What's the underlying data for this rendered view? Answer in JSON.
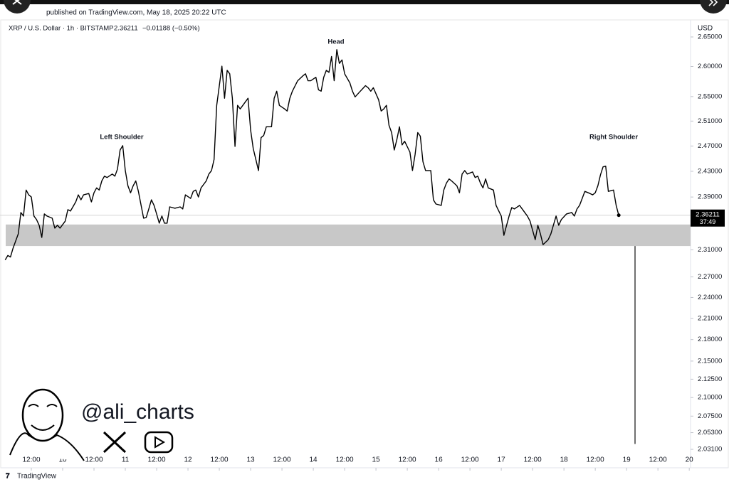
{
  "header": {
    "published": "published on TradingView.com, May 18, 2025 20:22 UTC",
    "symbol": "XRP / U.S. Dollar · 1h · BITSTAMP",
    "change": "−0.01188 (−0.50%)",
    "currency": "USD",
    "countdown": "37:49",
    "author": "@ali_charts",
    "brand": "TradingView"
  },
  "chart_data": {
    "type": "line",
    "color": "#000000",
    "log_scale": true,
    "grid": false,
    "annotations": [
      "Left Shoulder",
      "Head",
      "Right Shoulder"
    ],
    "support_zone": [
      2.3156,
      2.348
    ],
    "target": 2.038,
    "x": [
      -22,
      -21,
      -20,
      -19,
      -17,
      -16,
      -15,
      -14,
      -13,
      -12,
      -11,
      -10,
      -9,
      -8,
      -7,
      -6,
      -4,
      -3,
      -2,
      -1,
      1,
      2,
      3,
      5,
      6,
      7,
      8,
      10,
      11,
      12,
      13,
      14,
      15,
      16,
      17,
      19,
      20,
      21,
      22,
      23,
      24,
      25,
      26,
      27,
      28,
      29,
      31,
      32,
      33,
      34,
      35,
      36,
      37,
      38,
      39,
      40,
      41,
      43,
      45,
      46,
      47,
      49,
      50,
      51,
      52,
      53,
      55,
      56,
      57,
      58,
      59,
      61,
      62,
      63,
      64,
      65,
      66,
      67,
      68,
      69,
      71,
      72,
      73,
      75,
      76,
      77,
      78,
      80,
      81,
      82,
      83,
      85,
      86,
      87,
      88,
      90,
      92,
      93,
      94,
      95,
      97,
      98,
      99,
      100,
      101,
      102,
      103,
      104,
      105,
      106,
      107,
      108,
      110,
      111,
      112,
      114,
      116,
      117,
      118,
      119,
      121,
      122,
      123,
      124,
      125,
      126,
      127,
      128,
      129,
      130,
      131,
      133,
      134,
      135,
      136,
      137,
      138,
      139,
      141,
      142,
      143,
      145,
      146,
      147,
      148,
      149,
      151,
      152,
      153,
      154,
      155,
      157,
      158,
      159,
      160,
      161,
      162,
      163,
      165,
      166,
      168,
      169,
      171,
      172,
      173,
      175,
      176,
      178,
      179,
      181,
      182,
      183,
      184,
      186,
      187,
      189,
      190,
      191,
      193,
      195,
      196,
      197,
      198,
      199,
      200,
      202,
      203,
      204,
      205,
      206,
      207,
      208,
      209,
      211,
      212,
      213
    ],
    "values": [
      2.295,
      2.3015,
      2.2993,
      2.3123,
      2.3339,
      2.3663,
      2.3609,
      2.4008,
      2.3933,
      2.39,
      2.3609,
      2.3555,
      2.3468,
      2.3285,
      2.3641,
      2.3609,
      2.3576,
      2.3425,
      2.3468,
      2.3425,
      2.3533,
      2.3706,
      2.3684,
      2.3825,
      2.3933,
      2.3857,
      2.3933,
      2.3954,
      2.3825,
      2.3965,
      2.4041,
      2.4008,
      2.4149,
      2.4224,
      2.4203,
      2.4257,
      2.4224,
      2.4335,
      2.4636,
      2.4706,
      2.4312,
      2.4073,
      2.3965,
      2.4073,
      2.4149,
      2.3987,
      2.3576,
      2.3587,
      2.3717,
      2.3857,
      2.3771,
      2.3641,
      2.3501,
      2.3609,
      2.3501,
      2.3501,
      2.3749,
      2.3728,
      2.3749,
      2.3717,
      2.3933,
      2.3879,
      2.3987,
      2.4008,
      2.39,
      2.4041,
      2.4149,
      2.4257,
      2.4312,
      2.4486,
      2.5356,
      2.6005,
      2.5472,
      2.5936,
      2.5878,
      2.5472,
      2.4694,
      2.5356,
      2.5298,
      2.5356,
      2.5472,
      2.495,
      2.466,
      2.4312,
      2.4834,
      2.4868,
      2.5008,
      2.5008,
      2.5472,
      2.5588,
      2.5356,
      2.5298,
      2.5263,
      2.5472,
      2.5588,
      2.5762,
      2.5843,
      2.5878,
      2.5762,
      2.5762,
      2.582,
      2.5611,
      2.5588,
      2.582,
      2.5936,
      2.5901,
      2.6168,
      2.5762,
      2.6284,
      2.6052,
      2.611,
      2.5878,
      2.5727,
      2.5588,
      2.5495,
      2.5588,
      2.568,
      2.5646,
      2.5588,
      2.5646,
      2.5448,
      2.5263,
      2.5298,
      2.5356,
      2.5031,
      2.4915,
      2.4636,
      2.4799,
      2.5008,
      2.4718,
      2.4776,
      2.4602,
      2.4312,
      2.4567,
      2.4915,
      2.4857,
      2.4451,
      2.4312,
      2.4312,
      2.3857,
      2.3792,
      2.3771,
      2.4008,
      2.4116,
      2.4181,
      2.4149,
      2.4073,
      2.3965,
      2.4257,
      2.4312,
      2.4257,
      2.4289,
      2.4203,
      2.4224,
      2.4116,
      2.4041,
      2.4181,
      2.4041,
      2.4008,
      2.3771,
      2.3609,
      2.3317,
      2.3609,
      2.3738,
      2.3717,
      2.3771,
      2.3717,
      2.3609,
      2.3533,
      2.3252,
      2.3468,
      2.3339,
      2.3177,
      2.3252,
      2.3339,
      2.3609,
      2.3468,
      2.3555,
      2.3641,
      2.3663,
      2.3609,
      2.3717,
      2.3771,
      2.3879,
      2.3987,
      2.3954,
      2.3933,
      2.3965,
      2.4073,
      2.4246,
      2.437,
      2.4381,
      2.3987,
      2.4008,
      2.3771,
      2.36211
    ],
    "xlim": [
      -24,
      240.5
    ],
    "xticks": [
      {
        "value": -12,
        "label": "12:00"
      },
      {
        "value": 0,
        "label": "10"
      },
      {
        "value": 12,
        "label": "12:00"
      },
      {
        "value": 24,
        "label": "11"
      },
      {
        "value": 36,
        "label": "12:00"
      },
      {
        "value": 48,
        "label": "12"
      },
      {
        "value": 60,
        "label": "12:00"
      },
      {
        "value": 72,
        "label": "13"
      },
      {
        "value": 84,
        "label": "12:00"
      },
      {
        "value": 96,
        "label": "14"
      },
      {
        "value": 108,
        "label": "12:00"
      },
      {
        "value": 120,
        "label": "15"
      },
      {
        "value": 132,
        "label": "12:00"
      },
      {
        "value": 144,
        "label": "16"
      },
      {
        "value": 156,
        "label": "12:00"
      },
      {
        "value": 168,
        "label": "17"
      },
      {
        "value": 180,
        "label": "12:00"
      },
      {
        "value": 192,
        "label": "18"
      },
      {
        "value": 204,
        "label": "12:00"
      },
      {
        "value": 216,
        "label": "19"
      },
      {
        "value": 228,
        "label": "12:00"
      },
      {
        "value": 240,
        "label": "20"
      }
    ],
    "ylim": [
      2.0125,
      2.6793
    ],
    "yticks": [
      {
        "value": 2.65,
        "label": "2.65000"
      },
      {
        "value": 2.6,
        "label": "2.60000"
      },
      {
        "value": 2.55,
        "label": "2.55000"
      },
      {
        "value": 2.51,
        "label": "2.51000"
      },
      {
        "value": 2.47,
        "label": "2.47000"
      },
      {
        "value": 2.43,
        "label": "2.43000"
      },
      {
        "value": 2.39,
        "label": "2.39000"
      },
      {
        "value": 2.31,
        "label": "2.31000"
      },
      {
        "value": 2.27,
        "label": "2.27000"
      },
      {
        "value": 2.24,
        "label": "2.24000"
      },
      {
        "value": 2.21,
        "label": "2.21000"
      },
      {
        "value": 2.18,
        "label": "2.18000"
      },
      {
        "value": 2.15,
        "label": "2.15000"
      },
      {
        "value": 2.125,
        "label": "2.12500"
      },
      {
        "value": 2.1,
        "label": "2.10000"
      },
      {
        "value": 2.075,
        "label": "2.07500"
      },
      {
        "value": 2.053,
        "label": "2.05300"
      },
      {
        "value": 2.031,
        "label": "2.03100"
      }
    ]
  }
}
